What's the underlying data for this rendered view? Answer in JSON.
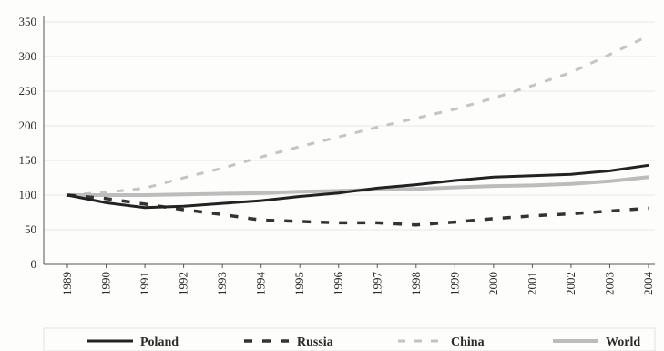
{
  "chart_data": {
    "type": "line",
    "title": "",
    "xlabel": "",
    "ylabel": "",
    "ylim": [
      0,
      350
    ],
    "yticks": [
      0,
      50,
      100,
      150,
      200,
      250,
      300,
      350
    ],
    "x": [
      "1989",
      "1990",
      "1991",
      "1992",
      "1993",
      "1994",
      "1995",
      "1996",
      "1997",
      "1998",
      "1999",
      "2000",
      "2001",
      "2002",
      "2003",
      "2004"
    ],
    "grid": true,
    "legend_position": "bottom",
    "series": [
      {
        "name": "Poland",
        "color": "#222222",
        "style": "solid",
        "values": [
          100,
          89,
          82,
          84,
          88,
          92,
          98,
          103,
          110,
          115,
          121,
          126,
          128,
          130,
          135,
          143
        ]
      },
      {
        "name": "Russia",
        "color": "#333333",
        "style": "dashed",
        "values": [
          100,
          95,
          87,
          79,
          72,
          64,
          62,
          60,
          60,
          57,
          61,
          66,
          70,
          73,
          77,
          81
        ]
      },
      {
        "name": "China",
        "color": "#c4c4c4",
        "style": "dashed",
        "values": [
          100,
          104,
          110,
          125,
          139,
          155,
          170,
          184,
          198,
          211,
          224,
          240,
          258,
          277,
          303,
          330
        ]
      },
      {
        "name": "World",
        "color": "#bcbcbc",
        "style": "solid",
        "values": [
          100,
          100,
          100,
          101,
          102,
          103,
          105,
          106,
          108,
          109,
          111,
          113,
          114,
          116,
          120,
          126
        ]
      }
    ]
  }
}
